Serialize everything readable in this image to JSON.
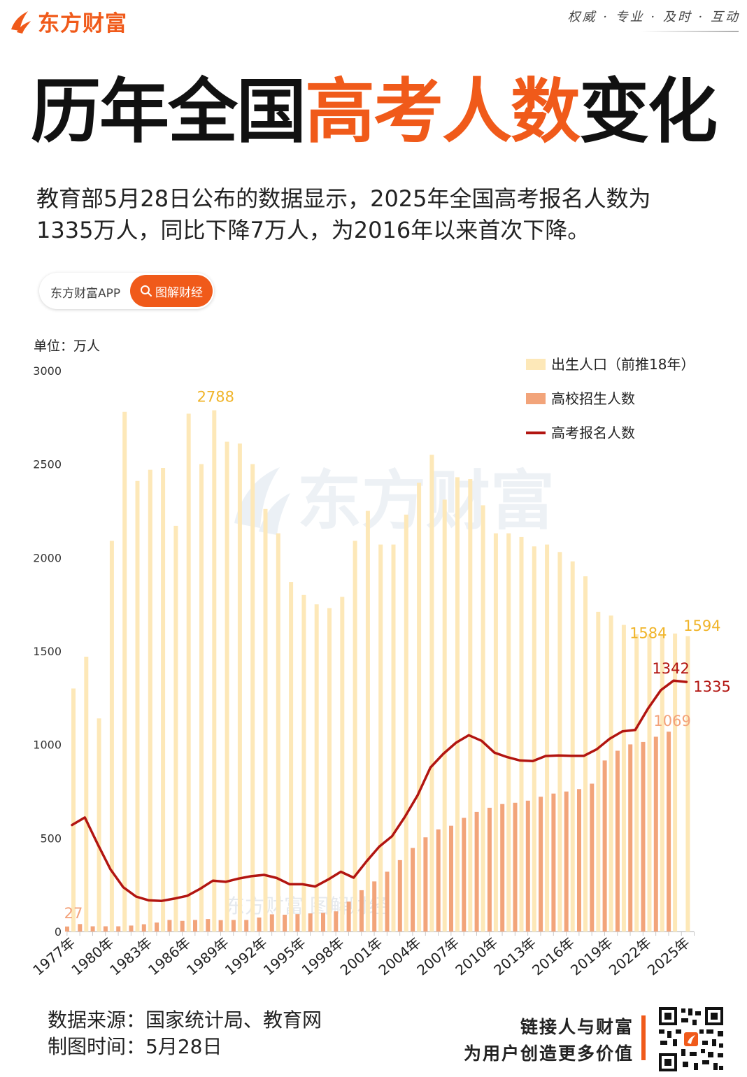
{
  "header": {
    "brand": "东方财富",
    "slogan": "权威 · 专业 · 及时 · 互动"
  },
  "title": {
    "part1": "历年全国",
    "part2": "高考人数",
    "part3": "变化"
  },
  "description": {
    "line1": "教育部5月28日公布的数据显示，2025年全国高考报名人数为",
    "line2": "1335万人，同比下降7万人，为2016年以来首次下降。"
  },
  "pill": {
    "left": "东方财富APP",
    "right": "图解财经"
  },
  "unit_label": "单位：万人",
  "watermark": {
    "big": "东方财富",
    "small": "东方财富 图解财经"
  },
  "colors": {
    "brand_orange": "#f05a1a",
    "birth_bar": "#fde8b8",
    "enroll_bar": "#f2a47a",
    "line": "#b21511",
    "birth_label": "#f0b429",
    "enroll_label": "#f3a27a"
  },
  "chart_data": {
    "type": "bar",
    "ylim": [
      0,
      3000
    ],
    "yticks": [
      0,
      500,
      1000,
      1500,
      2000,
      2500,
      3000
    ],
    "x": [
      1977,
      1978,
      1979,
      1980,
      1981,
      1982,
      1983,
      1984,
      1985,
      1986,
      1987,
      1988,
      1989,
      1990,
      1991,
      1992,
      1993,
      1994,
      1995,
      1996,
      1997,
      1998,
      1999,
      2000,
      2001,
      2002,
      2003,
      2004,
      2005,
      2006,
      2007,
      2008,
      2009,
      2010,
      2011,
      2012,
      2013,
      2014,
      2015,
      2016,
      2017,
      2018,
      2019,
      2020,
      2021,
      2022,
      2023,
      2024,
      2025
    ],
    "xtick_labels": [
      "1977年",
      "1980年",
      "1983年",
      "1986年",
      "1989年",
      "1992年",
      "1995年",
      "1998年",
      "2001年",
      "2004年",
      "2007年",
      "2010年",
      "2013年",
      "2016年",
      "2019年",
      "2022年",
      "2025年"
    ],
    "legend_position": "top-right",
    "series": [
      {
        "name": "出生人口（前推18年）",
        "type": "bar",
        "values": [
          1300,
          1470,
          1140,
          2090,
          2780,
          2410,
          2470,
          2480,
          2170,
          2770,
          2500,
          2788,
          2620,
          2610,
          2500,
          2260,
          2130,
          1870,
          1800,
          1750,
          1730,
          1790,
          2090,
          2250,
          2070,
          2070,
          2230,
          2400,
          2550,
          2310,
          2430,
          2420,
          2280,
          2130,
          2130,
          2110,
          2060,
          2070,
          2030,
          1980,
          1900,
          1710,
          1690,
          1640,
          1590,
          1590,
          1584,
          1594,
          1580
        ]
      },
      {
        "name": "高校招生人数",
        "type": "bar",
        "values": [
          27,
          40,
          28,
          28,
          28,
          32,
          39,
          48,
          62,
          57,
          62,
          67,
          61,
          62,
          62,
          75,
          92,
          90,
          93,
          97,
          100,
          108,
          160,
          221,
          268,
          320,
          382,
          447,
          504,
          546,
          566,
          608,
          640,
          662,
          682,
          689,
          700,
          721,
          738,
          749,
          762,
          791,
          915,
          967,
          1001,
          1014,
          1042,
          1069,
          0
        ]
      },
      {
        "name": "高考报名人数",
        "type": "line",
        "values": [
          570,
          610,
          468,
          333,
          237,
          187,
          167,
          164,
          176,
          191,
          228,
          272,
          266,
          283,
          296,
          303,
          286,
          253,
          253,
          241,
          278,
          320,
          288,
          375,
          454,
          510,
          613,
          729,
          877,
          950,
          1010,
          1050,
          1020,
          957,
          933,
          915,
          912,
          939,
          942,
          940,
          940,
          975,
          1031,
          1071,
          1078,
          1193,
          1291,
          1342,
          1335
        ]
      }
    ],
    "annotations": [
      {
        "label": "2788",
        "series": "出生人口（前推18年）",
        "x": 1988
      },
      {
        "label": "1584",
        "series": "出生人口（前推18年）",
        "x": 2023
      },
      {
        "label": "1594",
        "series": "出生人口（前推18年）",
        "x": 2024
      },
      {
        "label": "27",
        "series": "高校招生人数",
        "x": 1977
      },
      {
        "label": "1069",
        "series": "高校招生人数",
        "x": 2024
      },
      {
        "label": "1342",
        "series": "高考报名人数",
        "x": 2024
      },
      {
        "label": "1335",
        "series": "高考报名人数",
        "x": 2025
      }
    ]
  },
  "footer": {
    "source": "数据来源：国家统计局、教育网",
    "date": "制图时间：5月28日",
    "tagline1": "链接人与财富",
    "tagline2": "为用户创造更多价值"
  }
}
